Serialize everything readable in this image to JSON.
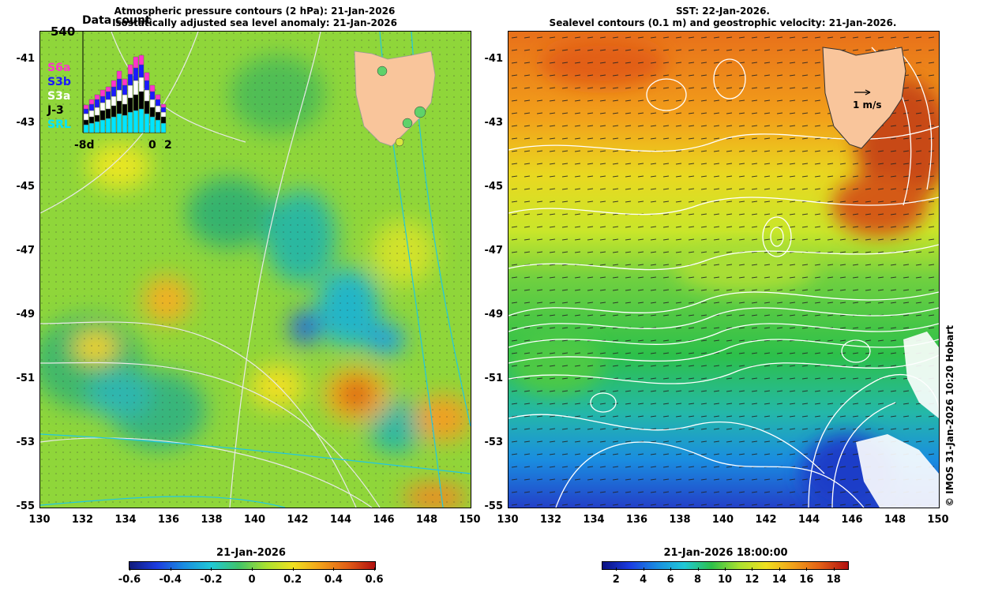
{
  "left_panel": {
    "title_line1": "Atmospheric pressure contours (2 hPa): 21-Jan-2026",
    "title_line2": "Isostatically adjusted sea level anomaly: 21-Jan-2026",
    "colorbar_title": "21-Jan-2026",
    "colorbar_ticks": [
      "-0.6",
      "-0.4",
      "-0.2",
      "0",
      "0.2",
      "0.4",
      "0.6"
    ],
    "colorbar_range": [
      -0.6,
      0.6
    ]
  },
  "right_panel": {
    "title_line1": "SST: 22-Jan-2026.",
    "title_line2": "Sealevel contours (0.1 m) and geostrophic velocity: 21-Jan-2026.",
    "colorbar_title": "21-Jan-2026 18:00:00",
    "colorbar_ticks": [
      "2",
      "4",
      "6",
      "8",
      "10",
      "12",
      "14",
      "16",
      "18"
    ],
    "colorbar_range": [
      1,
      19
    ],
    "velocity_scale_label": "1 m/s"
  },
  "axes": {
    "lon_ticks": [
      "130",
      "132",
      "134",
      "136",
      "138",
      "140",
      "142",
      "144",
      "146",
      "148",
      "150"
    ],
    "lat_ticks": [
      "-41",
      "-43",
      "-45",
      "-47",
      "-49",
      "-51",
      "-53",
      "-55"
    ],
    "lon_range": [
      130,
      150
    ],
    "lat_range": [
      -55,
      -40.1
    ]
  },
  "data_count_inset": {
    "title": "Data count",
    "ymax_label": "540",
    "x_labels": [
      "-8d",
      "0",
      "2"
    ],
    "missions": [
      {
        "name": "S6a",
        "color": "#ff33cc"
      },
      {
        "name": "S3b",
        "color": "#1a1aff"
      },
      {
        "name": "S3a",
        "color": "#ffffff"
      },
      {
        "name": "J-3",
        "color": "#000000"
      },
      {
        "name": "SRL",
        "color": "#00e5ff"
      }
    ]
  },
  "credit": "© IMOS 31-Jan-2026 10:20 Hobart",
  "colors": {
    "land": "#f9c59b",
    "sst_contour": "#ffffff",
    "pressure_contour": "#e8e8e8",
    "bathymetry_contour": "#22c7e0"
  }
}
